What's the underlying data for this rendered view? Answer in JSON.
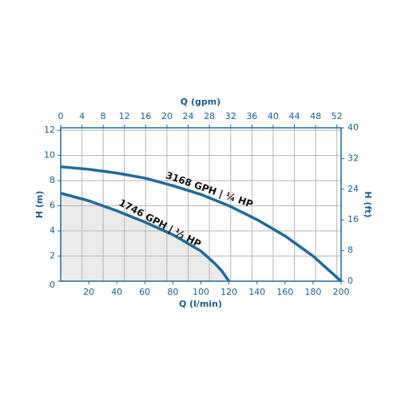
{
  "chart_data": {
    "type": "line",
    "xlabel": "Q (l/min)",
    "x2label": "Q (gpm)",
    "ylabel": "H (m)",
    "y2label": "H (ft)",
    "xlim": [
      0,
      200
    ],
    "xticks": [
      20,
      40,
      60,
      80,
      100,
      120,
      140,
      160,
      180,
      200
    ],
    "x2lim": [
      0,
      52.8
    ],
    "x2ticks": [
      0,
      4,
      8,
      12,
      16,
      20,
      24,
      28,
      32,
      36,
      40,
      44,
      48,
      52
    ],
    "ylim": [
      0,
      12.2
    ],
    "yticks": [
      0,
      2,
      4,
      6,
      8,
      10,
      12
    ],
    "y2lim": [
      0,
      40
    ],
    "y2ticks": [
      0,
      8,
      16,
      24,
      32,
      40
    ],
    "grid": true,
    "color": "#1d6b9c",
    "fill": "#ebebeb",
    "series": [
      {
        "name": "3168 GPH | ¼ HP",
        "color": "#1d6b9c",
        "x": [
          0,
          20,
          40,
          60,
          80,
          100,
          120,
          140,
          160,
          180,
          190,
          200
        ],
        "values": [
          9.1,
          8.9,
          8.6,
          8.2,
          7.6,
          6.9,
          6.0,
          4.9,
          3.6,
          2.0,
          1.0,
          0
        ]
      },
      {
        "name": "1746 GPH | ⅓ HP",
        "color": "#1d6b9c",
        "shaded": true,
        "x": [
          0,
          20,
          40,
          60,
          80,
          100,
          110,
          115,
          120
        ],
        "values": [
          7.0,
          6.4,
          5.6,
          4.7,
          3.7,
          2.4,
          1.4,
          0.8,
          0
        ]
      }
    ]
  }
}
